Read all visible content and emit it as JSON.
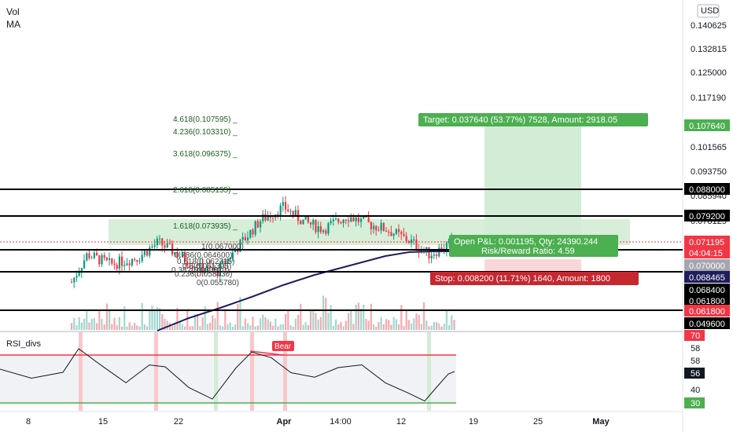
{
  "header": {
    "vol_label": "Vol",
    "ma_label": "MA"
  },
  "currency": "USD",
  "rsi_title": "RSI_divs",
  "colors": {
    "up": "#089981",
    "down": "#f23645",
    "ma": "#1f1d5b",
    "target_fill": "#c8e6c9",
    "stop_fill": "#f8c8cb",
    "label_green": "#4caf50",
    "label_red": "#c5282f",
    "current_price": "#f23645",
    "navy": "#1f1d5b",
    "gray": "#787b86"
  },
  "chart_data": [
    {
      "type": "candlestick",
      "title": "",
      "x_ticks": [
        "8",
        "15",
        "22",
        "Apr",
        "14:00",
        "12",
        "19",
        "25",
        "May"
      ],
      "y_ticks": [
        "0.140625",
        "0.132815",
        "0.125000",
        "0.117190",
        "0.109375",
        "0.101565",
        "0.093750",
        "0.085940",
        "0.078125",
        "0.062500"
      ],
      "price_labels": [
        {
          "text": "0.107640",
          "style": "green"
        },
        {
          "text": "0.088000",
          "style": "black"
        },
        {
          "text": "0.079200",
          "style": "black"
        },
        {
          "text": "0.071195",
          "style": "red"
        },
        {
          "text": "04:04:15",
          "style": "red"
        },
        {
          "text": "0.070000",
          "style": "gray"
        },
        {
          "text": "0.068465",
          "style": "navy"
        },
        {
          "text": "0.068400",
          "style": "black"
        },
        {
          "text": "0.061800",
          "style": "black"
        },
        {
          "text": "0.061800",
          "style": "red"
        },
        {
          "text": "0.049600",
          "style": "black"
        }
      ],
      "horizontal_levels": [
        0.088,
        0.0792,
        0.0684,
        0.0618
      ],
      "fib_levels": [
        {
          "ratio": "4.618",
          "price": "0.107595"
        },
        {
          "ratio": "4.236",
          "price": "0.103310"
        },
        {
          "ratio": "3.618",
          "price": "0.096375"
        },
        {
          "ratio": "2.618",
          "price": "0.085155"
        },
        {
          "ratio": "1.618",
          "price": "0.073935"
        },
        {
          "ratio": "1",
          "price": "0.067000"
        },
        {
          "ratio": "0.786",
          "price": "0.064600"
        },
        {
          "ratio": "0.618",
          "price": "0.062715"
        },
        {
          "ratio": "0.5",
          "price": "0.061395"
        },
        {
          "ratio": "0.382",
          "price": "0.060070"
        },
        {
          "ratio": "0.236",
          "price": "0.058430"
        },
        {
          "ratio": "0",
          "price": "0.055780"
        }
      ],
      "position": {
        "target_text": "Target: 0.037640 (53.77%) 7528, Amount: 2918.05",
        "open_pnl_text": "Open P&L: 0.001195, Qty: 24390.244",
        "rr_text": "Risk/Reward Ratio: 4.59",
        "stop_text": "Stop: 0.008200 (11.71%) 1640, Amount: 1800",
        "entry": 0.07,
        "target": 0.10764,
        "stop": 0.0618
      },
      "ma_label": "MA",
      "current_price": 0.071195
    },
    {
      "type": "line",
      "title": "RSI_divs",
      "y_ticks": [
        "70",
        "58",
        "58",
        "56",
        "40",
        "30"
      ],
      "levels": [
        70,
        30
      ],
      "current_value": 56,
      "annotations": [
        "Bear"
      ]
    }
  ]
}
